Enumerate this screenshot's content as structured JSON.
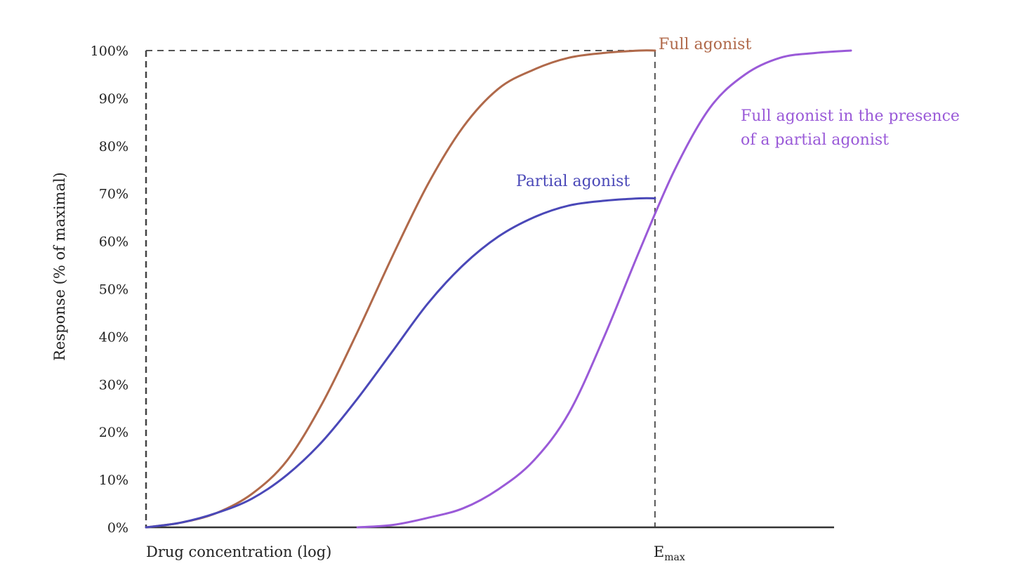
{
  "chart_data": {
    "type": "line",
    "ylabel": "Response (% of maximal)",
    "xlabel": "Drug concentration (log)",
    "x_marker": {
      "main": "E",
      "sub": "max"
    },
    "y_ticks": [
      "0%",
      "10%",
      "20%",
      "30%",
      "40%",
      "50%",
      "60%",
      "70%",
      "80%",
      "90%",
      "100%"
    ],
    "ylim": [
      0,
      100
    ],
    "xlim": [
      0,
      1
    ],
    "emax_x": 0.722,
    "grid": false,
    "series": [
      {
        "name": "Full agonist",
        "color": "#b0694a",
        "label_lines": [
          "Full agonist"
        ],
        "x": [
          0.0,
          0.05,
          0.1,
          0.15,
          0.2,
          0.25,
          0.3,
          0.35,
          0.4,
          0.45,
          0.5,
          0.55,
          0.6,
          0.65,
          0.7,
          0.722
        ],
        "y": [
          0,
          1,
          3,
          7,
          14,
          26,
          41,
          57,
          72,
          84,
          92,
          96,
          98.5,
          99.5,
          100,
          100
        ]
      },
      {
        "name": "Partial agonist",
        "color": "#4a48b8",
        "label_lines": [
          "Partial agonist"
        ],
        "x": [
          0.0,
          0.05,
          0.1,
          0.15,
          0.2,
          0.25,
          0.3,
          0.35,
          0.4,
          0.45,
          0.5,
          0.55,
          0.6,
          0.65,
          0.7,
          0.722
        ],
        "y": [
          0,
          1,
          3,
          6,
          11,
          18,
          27,
          37,
          47,
          55,
          61,
          65,
          67.5,
          68.5,
          69,
          69
        ]
      },
      {
        "name": "Full agonist in the presence of a partial agonist",
        "color": "#9a5ad8",
        "label_lines": [
          "Full agonist in the presence",
          "of a partial agonist"
        ],
        "x": [
          0.3,
          0.35,
          0.4,
          0.45,
          0.5,
          0.55,
          0.6,
          0.65,
          0.7,
          0.75,
          0.8,
          0.85,
          0.9,
          0.95,
          1.0
        ],
        "y": [
          0,
          0.5,
          2,
          4,
          8,
          14,
          24,
          40,
          58,
          75,
          88,
          95,
          98.5,
          99.5,
          100
        ]
      }
    ]
  }
}
